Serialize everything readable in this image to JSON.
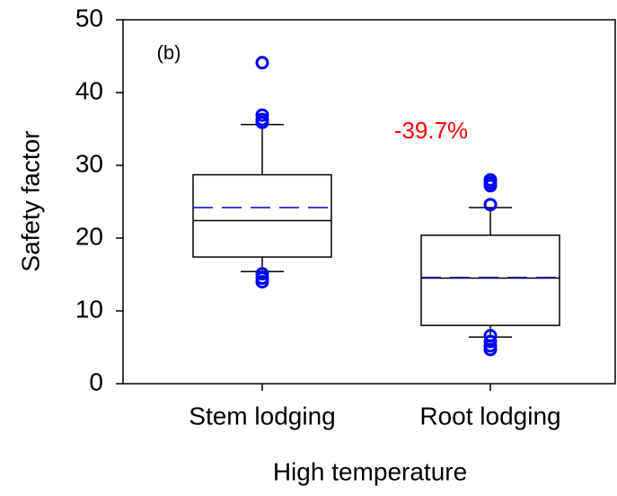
{
  "chart_data": {
    "type": "box",
    "y_label": "Safety factor",
    "x_label": "High temperature",
    "annotations": [
      {
        "text": "(b)",
        "color": "#000000"
      },
      {
        "text": "-39.7%",
        "color": "#ff0000"
      }
    ],
    "categories": [
      "Stem lodging",
      "Root lodging"
    ],
    "boxes": [
      {
        "whisker_low": 15.4,
        "q1": 17.4,
        "median": 22.4,
        "q3": 28.7,
        "whisker_high": 35.6,
        "mean": 24.2,
        "outliers": [
          44.1,
          36.9,
          36.3,
          35.9,
          15.1,
          14.5,
          14.0
        ]
      },
      {
        "whisker_low": 6.4,
        "q1": 8.0,
        "median": 14.5,
        "q3": 20.4,
        "whisker_high": 24.2,
        "mean": 14.6,
        "outliers": [
          28.0,
          27.6,
          27.2,
          24.6,
          6.6,
          5.8,
          5.2,
          4.7
        ]
      }
    ],
    "box_color": "#000000",
    "mean_color": "#0000cc",
    "outlier_color": "#0000ff",
    "ylim": [
      0,
      50
    ],
    "yticks": [
      0,
      10,
      20,
      30,
      40,
      50
    ]
  }
}
